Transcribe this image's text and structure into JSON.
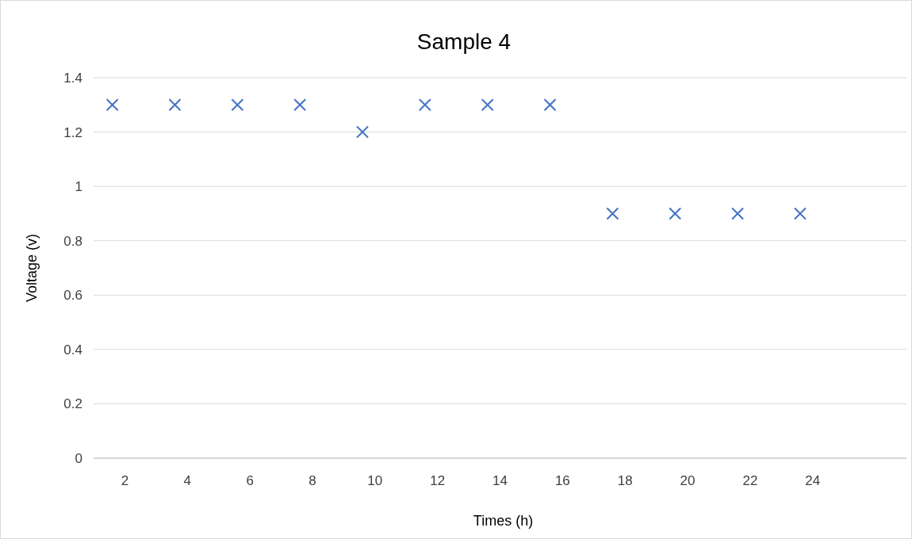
{
  "chart_data": {
    "type": "scatter",
    "title": "Sample 4",
    "xlabel": "Times (h)",
    "ylabel": "Voltage (v)",
    "x": [
      1.6,
      3.6,
      5.6,
      7.6,
      9.6,
      11.6,
      13.6,
      15.6,
      17.6,
      19.6,
      21.6,
      23.6
    ],
    "series": [
      {
        "color": "#4472c4",
        "values": [
          1.3,
          1.3,
          1.3,
          1.3,
          1.2,
          1.3,
          1.3,
          1.3,
          0.9,
          0.9,
          0.9,
          0.9
        ]
      }
    ],
    "xlim": [
      1,
      27
    ],
    "xticks": [
      2,
      4,
      6,
      8,
      10,
      12,
      14,
      16,
      18,
      20,
      22,
      24
    ],
    "ylim": [
      0,
      1.4
    ],
    "yticks": [
      0,
      {
        "value": 0.2,
        "label": "0.2"
      },
      {
        "value": 0.4,
        "label": "0.4"
      },
      {
        "value": 0.6,
        "label": "0.6"
      },
      {
        "value": 0.8,
        "label": "0.8"
      },
      1,
      {
        "value": 1.2,
        "label": "1.2"
      },
      {
        "value": 1.4,
        "label": "1.4"
      }
    ],
    "grid": "y",
    "marker": "cross"
  }
}
